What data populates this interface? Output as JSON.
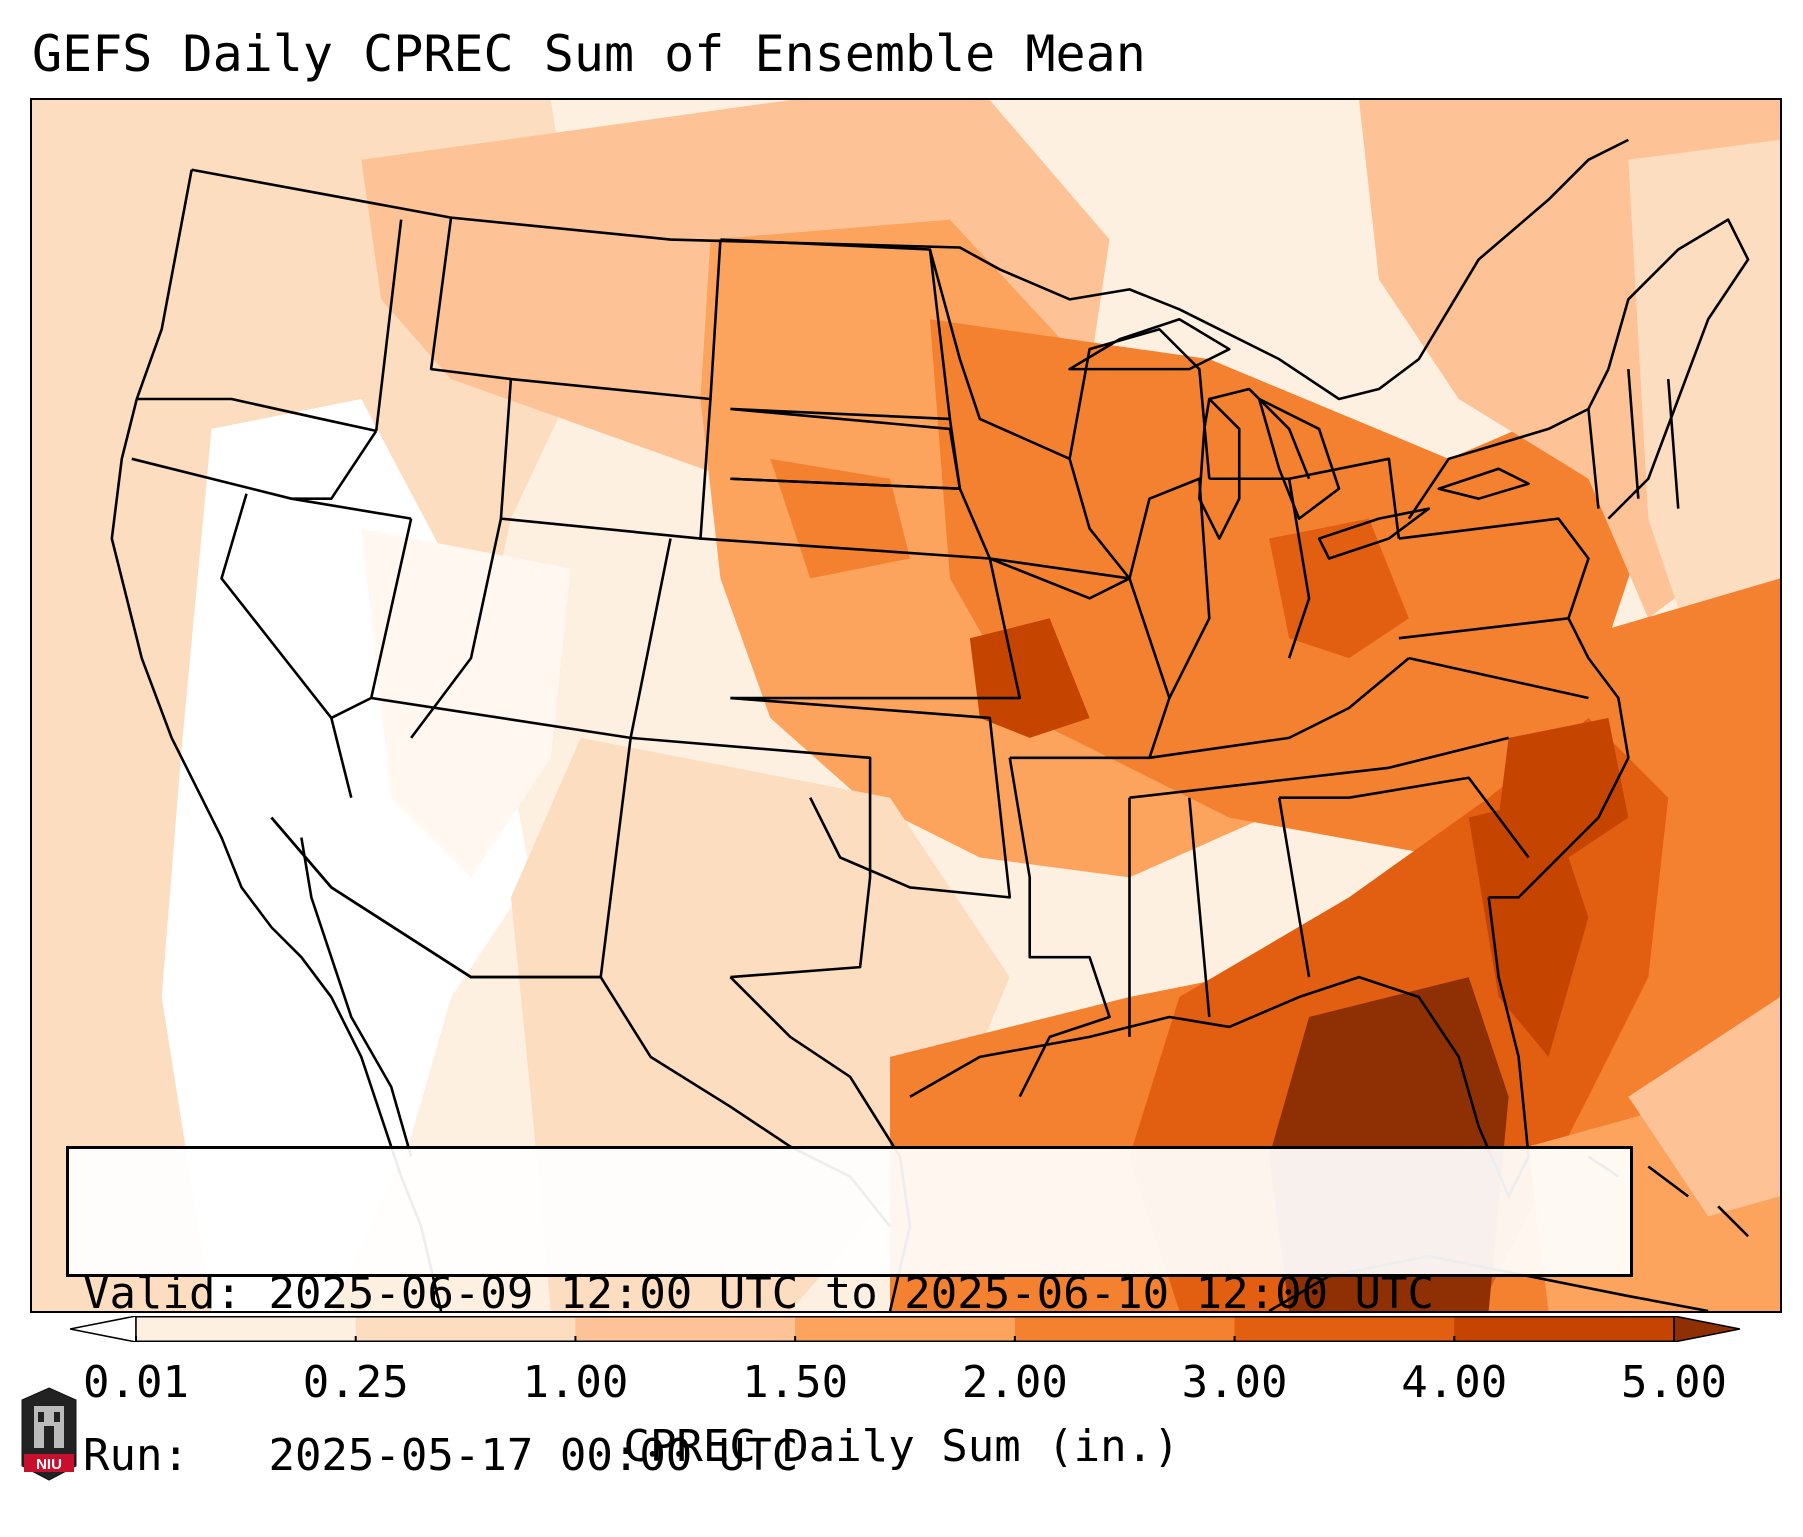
{
  "title": "GEFS Daily CPREC Sum of Ensemble Mean",
  "info": {
    "valid_label": "Valid:",
    "valid_value": "2025-06-09 12:00 UTC to 2025-06-10 12:00 UTC",
    "run_label": "Run:",
    "run_value": "2025-05-17 00:00 UTC"
  },
  "colorbar": {
    "label": "CPREC Daily Sum (in.)",
    "ticks": [
      "0.01",
      "0.25",
      "1.00",
      "1.50",
      "2.00",
      "3.00",
      "4.00",
      "5.00"
    ],
    "colors": [
      "#fef0e0",
      "#fdddc0",
      "#fdc396",
      "#fca45d",
      "#f4812f",
      "#e25f11",
      "#c54500",
      "#8e3004"
    ],
    "extend": "both"
  },
  "logo": {
    "text": "NIU"
  },
  "map": {
    "projection": "lambert-conformal",
    "region": "CONUS",
    "palette": {
      "none": "#ffffff",
      "very_light": "#fef0e0",
      "light": "#fdddc0",
      "light_mid": "#fdc396",
      "mid": "#fca45d",
      "mid_dark": "#f4812f",
      "dark": "#e25f11",
      "darker": "#c54500",
      "darkest": "#8e3004"
    }
  }
}
